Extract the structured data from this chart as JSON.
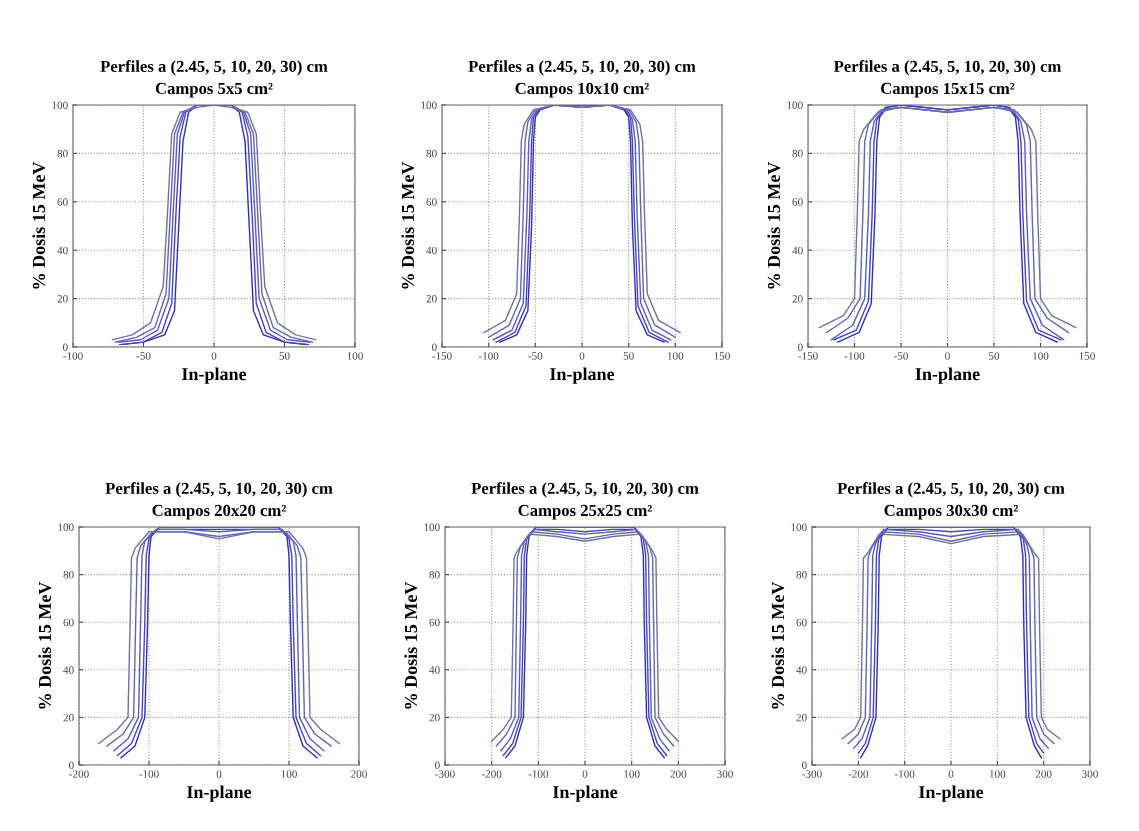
{
  "chart_data": [
    {
      "type": "line",
      "title": "Perfiles a (2.45, 5, 10, 20, 30) cm",
      "subtitle": "Campos 5x5 cm²",
      "xlabel": "In-plane",
      "ylabel": "% Dosis 15 MeV",
      "xlim": [
        -100,
        100
      ],
      "xticks": [
        -100,
        -50,
        0,
        50,
        100
      ],
      "ylim": [
        0,
        100
      ],
      "yticks": [
        0,
        20,
        40,
        60,
        80,
        100
      ],
      "grid": true,
      "line_style": "solid",
      "series": [
        {
          "color": "#2c2cc8",
          "x": [
            -65,
            -50,
            -35,
            -28,
            -25,
            -22,
            -18,
            -12,
            0,
            12,
            18,
            22,
            25,
            28,
            35,
            50,
            65
          ],
          "values": [
            1,
            2,
            5,
            15,
            50,
            85,
            97,
            100,
            100,
            100,
            97,
            85,
            50,
            15,
            5,
            2,
            1
          ]
        },
        {
          "color": "#4444c4",
          "x": [
            -67,
            -50,
            -37,
            -30,
            -27,
            -24,
            -20,
            -12,
            0,
            12,
            20,
            24,
            27,
            30,
            37,
            50,
            67
          ],
          "values": [
            1,
            2,
            6,
            18,
            55,
            87,
            97,
            100,
            100,
            100,
            97,
            87,
            55,
            18,
            6,
            2,
            1
          ]
        },
        {
          "color": "#5a5ac0",
          "x": [
            -68,
            -52,
            -40,
            -32,
            -29,
            -26,
            -21,
            -12,
            0,
            12,
            21,
            26,
            29,
            32,
            40,
            52,
            68
          ],
          "values": [
            2,
            3,
            7,
            20,
            55,
            88,
            97,
            100,
            100,
            100,
            97,
            88,
            55,
            20,
            7,
            3,
            2
          ]
        },
        {
          "color": "#6464b4",
          "x": [
            -70,
            -55,
            -42,
            -34,
            -31,
            -28,
            -22,
            -12,
            0,
            12,
            22,
            28,
            31,
            34,
            42,
            55,
            70
          ],
          "values": [
            2,
            4,
            8,
            22,
            55,
            88,
            97,
            100,
            100,
            100,
            97,
            88,
            55,
            22,
            8,
            4,
            2
          ]
        },
        {
          "color": "#7070a8",
          "x": [
            -72,
            -58,
            -45,
            -36,
            -33,
            -30,
            -24,
            -12,
            0,
            12,
            24,
            30,
            33,
            36,
            45,
            58,
            72
          ],
          "values": [
            3,
            5,
            10,
            25,
            55,
            88,
            97,
            99,
            100,
            99,
            97,
            88,
            55,
            25,
            10,
            5,
            3
          ]
        }
      ]
    },
    {
      "type": "line",
      "title": "Perfiles a (2.45, 5, 10, 20, 30) cm",
      "subtitle": "Campos 10x10 cm²",
      "xlabel": "In-plane",
      "ylabel": "% Dosis 15 MeV",
      "xlim": [
        -150,
        150
      ],
      "xticks": [
        -150,
        -100,
        -50,
        0,
        50,
        100,
        150
      ],
      "ylim": [
        0,
        100
      ],
      "yticks": [
        0,
        20,
        40,
        60,
        80,
        100
      ],
      "grid": true,
      "line_style": "solid",
      "series": [
        {
          "color": "#2c2cc8",
          "x": [
            -88,
            -70,
            -58,
            -54,
            -52,
            -50,
            -45,
            -30,
            0,
            30,
            45,
            50,
            52,
            54,
            58,
            70,
            88
          ],
          "values": [
            2,
            5,
            15,
            50,
            85,
            95,
            98,
            100,
            100,
            100,
            98,
            95,
            85,
            50,
            15,
            5,
            2
          ]
        },
        {
          "color": "#4444c4",
          "x": [
            -92,
            -72,
            -60,
            -56,
            -54,
            -52,
            -46,
            -30,
            0,
            30,
            46,
            52,
            54,
            56,
            60,
            72,
            92
          ],
          "values": [
            2,
            6,
            17,
            55,
            85,
            95,
            98,
            100,
            100,
            100,
            98,
            95,
            85,
            55,
            17,
            6,
            2
          ]
        },
        {
          "color": "#5a5ac0",
          "x": [
            -95,
            -75,
            -63,
            -59,
            -57,
            -54,
            -48,
            -30,
            0,
            30,
            48,
            54,
            57,
            59,
            63,
            75,
            95
          ],
          "values": [
            3,
            7,
            18,
            55,
            85,
            94,
            98,
            100,
            99,
            100,
            98,
            94,
            85,
            55,
            18,
            7,
            3
          ]
        },
        {
          "color": "#6464b4",
          "x": [
            -100,
            -78,
            -66,
            -63,
            -61,
            -58,
            -50,
            -30,
            0,
            30,
            50,
            58,
            61,
            63,
            66,
            78,
            100
          ],
          "values": [
            4,
            9,
            20,
            55,
            85,
            93,
            98,
            100,
            99,
            100,
            98,
            93,
            85,
            55,
            20,
            9,
            4
          ]
        },
        {
          "color": "#7070a8",
          "x": [
            -105,
            -82,
            -70,
            -67,
            -65,
            -62,
            -52,
            -30,
            0,
            30,
            52,
            62,
            65,
            67,
            70,
            82,
            105
          ],
          "values": [
            6,
            11,
            22,
            55,
            85,
            92,
            98,
            100,
            99,
            100,
            98,
            92,
            85,
            55,
            22,
            11,
            6
          ]
        }
      ]
    },
    {
      "type": "line",
      "title": "Perfiles a (2.45, 5, 10, 20, 30) cm",
      "subtitle": "Campos 15x15 cm²",
      "xlabel": "In-plane",
      "ylabel": "% Dosis 15 MeV",
      "xlim": [
        -150,
        150
      ],
      "xticks": [
        -150,
        -100,
        -50,
        0,
        50,
        100,
        150
      ],
      "ylim": [
        0,
        100
      ],
      "yticks": [
        0,
        20,
        40,
        60,
        80,
        100
      ],
      "grid": true,
      "line_style": "solid",
      "series": [
        {
          "color": "#2c2cc8",
          "x": [
            -118,
            -95,
            -82,
            -78,
            -76,
            -73,
            -65,
            -50,
            0,
            50,
            65,
            73,
            76,
            78,
            82,
            95,
            118
          ],
          "values": [
            2,
            6,
            18,
            55,
            85,
            95,
            99,
            100,
            98,
            100,
            99,
            95,
            85,
            55,
            18,
            6,
            2
          ]
        },
        {
          "color": "#4444c4",
          "x": [
            -122,
            -98,
            -85,
            -81,
            -79,
            -76,
            -67,
            -50,
            0,
            50,
            67,
            76,
            79,
            81,
            85,
            98,
            122
          ],
          "values": [
            3,
            7,
            19,
            55,
            85,
            94,
            99,
            100,
            98,
            100,
            99,
            94,
            85,
            55,
            19,
            7,
            3
          ]
        },
        {
          "color": "#5a5ac0",
          "x": [
            -125,
            -102,
            -89,
            -85,
            -83,
            -79,
            -70,
            -50,
            0,
            50,
            70,
            79,
            83,
            85,
            89,
            102,
            125
          ],
          "values": [
            3,
            9,
            20,
            55,
            85,
            93,
            98,
            99,
            97,
            99,
            98,
            93,
            85,
            55,
            20,
            9,
            3
          ]
        },
        {
          "color": "#6464b4",
          "x": [
            -130,
            -107,
            -94,
            -91,
            -89,
            -85,
            -72,
            -50,
            0,
            50,
            72,
            85,
            89,
            91,
            94,
            107,
            130
          ],
          "values": [
            6,
            12,
            20,
            55,
            85,
            92,
            98,
            99,
            97,
            99,
            98,
            92,
            85,
            55,
            20,
            12,
            6
          ]
        },
        {
          "color": "#7070a8",
          "x": [
            -138,
            -112,
            -100,
            -97,
            -95,
            -90,
            -75,
            -50,
            0,
            50,
            75,
            90,
            95,
            97,
            100,
            112,
            138
          ],
          "values": [
            8,
            13,
            20,
            55,
            85,
            90,
            97,
            99,
            97,
            99,
            97,
            90,
            85,
            55,
            20,
            13,
            8
          ]
        }
      ]
    },
    {
      "type": "line",
      "title": "Perfiles a (2.45, 5, 10, 20, 30) cm",
      "subtitle": "Campos 20x20 cm²",
      "xlabel": "In-plane",
      "ylabel": "% Dosis 15 MeV",
      "xlim": [
        -200,
        200
      ],
      "xticks": [
        -200,
        -100,
        0,
        100,
        200
      ],
      "ylim": [
        0,
        100
      ],
      "yticks": [
        0,
        20,
        40,
        60,
        80,
        100
      ],
      "grid": true,
      "line_style": "solid",
      "series": [
        {
          "color": "#2c2cc8",
          "x": [
            -140,
            -120,
            -106,
            -102,
            -100,
            -97,
            -85,
            -50,
            0,
            50,
            85,
            97,
            100,
            102,
            106,
            120,
            140
          ],
          "values": [
            3,
            8,
            20,
            60,
            88,
            96,
            100,
            100,
            100,
            100,
            100,
            96,
            88,
            60,
            20,
            8,
            3
          ]
        },
        {
          "color": "#4444c4",
          "x": [
            -145,
            -125,
            -110,
            -106,
            -104,
            -100,
            -88,
            -50,
            0,
            50,
            88,
            100,
            104,
            106,
            110,
            125,
            145
          ],
          "values": [
            4,
            9,
            20,
            60,
            88,
            95,
            99,
            99,
            99,
            99,
            99,
            95,
            88,
            60,
            20,
            9,
            4
          ]
        },
        {
          "color": "#5a5ac0",
          "x": [
            -150,
            -130,
            -115,
            -112,
            -110,
            -106,
            -90,
            -50,
            0,
            50,
            90,
            106,
            110,
            112,
            115,
            130,
            150
          ],
          "values": [
            6,
            11,
            20,
            60,
            88,
            94,
            99,
            99,
            98,
            99,
            99,
            94,
            88,
            60,
            20,
            11,
            6
          ]
        },
        {
          "color": "#6464b4",
          "x": [
            -160,
            -137,
            -122,
            -119,
            -117,
            -112,
            -95,
            -50,
            0,
            50,
            95,
            112,
            117,
            119,
            122,
            137,
            160
          ],
          "values": [
            8,
            13,
            20,
            60,
            87,
            92,
            98,
            98,
            96,
            98,
            98,
            92,
            87,
            60,
            20,
            13,
            8
          ]
        },
        {
          "color": "#7070a8",
          "x": [
            -172,
            -145,
            -130,
            -127,
            -125,
            -120,
            -100,
            -50,
            0,
            50,
            100,
            120,
            125,
            127,
            130,
            145,
            172
          ],
          "values": [
            9,
            15,
            20,
            60,
            87,
            91,
            98,
            98,
            95,
            98,
            98,
            91,
            87,
            60,
            20,
            15,
            9
          ]
        }
      ]
    },
    {
      "type": "line",
      "title": "Perfiles a (2.45, 5, 10, 20, 30) cm",
      "subtitle": "Campos 25x25 cm²",
      "xlabel": "In-plane",
      "ylabel": "% Dosis 15 MeV",
      "xlim": [
        -300,
        300
      ],
      "xticks": [
        -300,
        -200,
        -100,
        0,
        100,
        200,
        300
      ],
      "ylim": [
        0,
        100
      ],
      "yticks": [
        0,
        20,
        40,
        60,
        80,
        100
      ],
      "grid": true,
      "line_style": "solid",
      "series": [
        {
          "color": "#2c2cc8",
          "x": [
            -170,
            -150,
            -132,
            -127,
            -125,
            -120,
            -105,
            -60,
            0,
            60,
            105,
            120,
            125,
            127,
            132,
            150,
            170
          ],
          "values": [
            3,
            8,
            20,
            60,
            88,
            96,
            100,
            100,
            100,
            100,
            100,
            96,
            88,
            60,
            20,
            8,
            3
          ]
        },
        {
          "color": "#4444c4",
          "x": [
            -175,
            -155,
            -137,
            -132,
            -130,
            -125,
            -108,
            -60,
            0,
            60,
            108,
            125,
            130,
            132,
            137,
            155,
            175
          ],
          "values": [
            4,
            9,
            20,
            60,
            88,
            95,
            99,
            99,
            98,
            99,
            99,
            95,
            88,
            60,
            20,
            9,
            4
          ]
        },
        {
          "color": "#5a5ac0",
          "x": [
            -180,
            -160,
            -142,
            -138,
            -136,
            -130,
            -110,
            -60,
            0,
            60,
            110,
            130,
            136,
            138,
            142,
            160,
            180
          ],
          "values": [
            6,
            11,
            20,
            60,
            88,
            94,
            99,
            98,
            97,
            98,
            99,
            94,
            88,
            60,
            20,
            11,
            6
          ]
        },
        {
          "color": "#6464b4",
          "x": [
            -190,
            -168,
            -150,
            -147,
            -145,
            -138,
            -115,
            -60,
            0,
            60,
            115,
            138,
            145,
            147,
            150,
            168,
            190
          ],
          "values": [
            8,
            13,
            20,
            60,
            87,
            92,
            98,
            97,
            95,
            97,
            98,
            92,
            87,
            60,
            20,
            13,
            8
          ]
        },
        {
          "color": "#7070a8",
          "x": [
            -200,
            -175,
            -158,
            -154,
            -152,
            -145,
            -120,
            -60,
            0,
            60,
            120,
            145,
            152,
            154,
            158,
            175,
            200
          ],
          "values": [
            10,
            15,
            20,
            60,
            87,
            90,
            97,
            96,
            94,
            96,
            97,
            90,
            87,
            60,
            20,
            15,
            10
          ]
        }
      ]
    },
    {
      "type": "line",
      "title": "Perfiles a (2.45, 5, 10, 20, 30) cm",
      "subtitle": "Campos 30x30 cm²",
      "xlabel": "In-plane",
      "ylabel": "% Dosis 15 MeV",
      "xlim": [
        -300,
        300
      ],
      "xticks": [
        -300,
        -200,
        -100,
        0,
        100,
        200,
        300
      ],
      "ylim": [
        0,
        100
      ],
      "yticks": [
        0,
        20,
        40,
        60,
        80,
        100
      ],
      "grid": true,
      "line_style": "solid",
      "series": [
        {
          "color": "#2c2cc8",
          "x": [
            -195,
            -180,
            -162,
            -157,
            -155,
            -150,
            -135,
            -70,
            0,
            70,
            135,
            150,
            155,
            157,
            162,
            180,
            195
          ],
          "values": [
            3,
            8,
            20,
            60,
            88,
            96,
            100,
            100,
            100,
            100,
            100,
            96,
            88,
            60,
            20,
            8,
            3
          ]
        },
        {
          "color": "#4444c4",
          "x": [
            -200,
            -185,
            -168,
            -163,
            -161,
            -156,
            -140,
            -70,
            0,
            70,
            140,
            156,
            161,
            163,
            168,
            185,
            200
          ],
          "values": [
            5,
            9,
            20,
            60,
            88,
            95,
            99,
            99,
            98,
            99,
            99,
            95,
            88,
            60,
            20,
            9,
            5
          ]
        },
        {
          "color": "#5a5ac0",
          "x": [
            -210,
            -192,
            -175,
            -171,
            -169,
            -163,
            -145,
            -70,
            0,
            70,
            145,
            163,
            169,
            171,
            175,
            192,
            210
          ],
          "values": [
            7,
            11,
            20,
            60,
            88,
            93,
            99,
            98,
            96,
            98,
            99,
            93,
            88,
            60,
            20,
            11,
            7
          ]
        },
        {
          "color": "#6464b4",
          "x": [
            -222,
            -200,
            -185,
            -181,
            -179,
            -172,
            -150,
            -70,
            0,
            70,
            150,
            172,
            179,
            181,
            185,
            200,
            222
          ],
          "values": [
            9,
            13,
            20,
            60,
            87,
            91,
            98,
            97,
            94,
            97,
            98,
            91,
            87,
            60,
            20,
            13,
            9
          ]
        },
        {
          "color": "#7070a8",
          "x": [
            -235,
            -208,
            -195,
            -191,
            -189,
            -180,
            -155,
            -70,
            0,
            70,
            155,
            180,
            189,
            191,
            195,
            208,
            235
          ],
          "values": [
            11,
            15,
            20,
            60,
            87,
            89,
            97,
            96,
            93,
            96,
            97,
            89,
            87,
            60,
            20,
            15,
            11
          ]
        }
      ]
    }
  ]
}
